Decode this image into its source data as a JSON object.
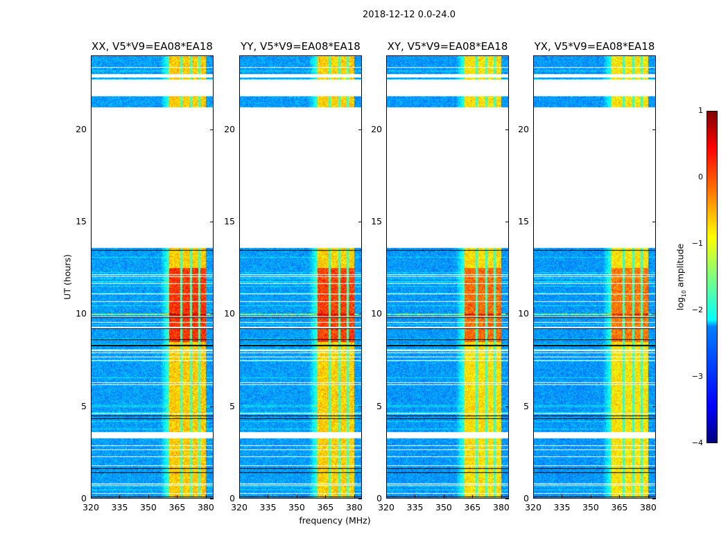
{
  "figure_title": "2018-12-12 0.0-24.0",
  "chart_data": {
    "type": "heatmap",
    "title": "2018-12-12 0.0-24.0",
    "xlabel": "frequency (MHz)",
    "ylabel": "UT (hours)",
    "xlim": [
      320,
      384
    ],
    "ylim": [
      0,
      24
    ],
    "xticks": [
      "320",
      "335",
      "350",
      "365",
      "380"
    ],
    "xtick_values": [
      320,
      335,
      350,
      365,
      380
    ],
    "yticks": [
      "0",
      "5",
      "10",
      "15",
      "20"
    ],
    "ytick_values": [
      0,
      5,
      10,
      15,
      20
    ],
    "panels": [
      {
        "title": "XX, V5*V9=EA08*EA18",
        "level": 1.0
      },
      {
        "title": "YY, V5*V9=EA08*EA18",
        "level": 0.95
      },
      {
        "title": "XY, V5*V9=EA08*EA18",
        "level": 0.8
      },
      {
        "title": "YX, V5*V9=EA08*EA18",
        "level": 0.75
      }
    ],
    "data_segments_hours": [
      [
        0,
        3.3
      ],
      [
        3.6,
        13.6
      ],
      [
        21.2,
        21.8
      ],
      [
        22.7,
        22.8
      ],
      [
        23.0,
        24.0
      ]
    ],
    "rfi_band_mhz": [
      360.5,
      380
    ],
    "rfi_band_gaps_mhz": [
      367,
      372,
      376.5
    ],
    "colorbar": {
      "label_prefix": "log",
      "label_sub": "10",
      "label_suffix": " amplitude",
      "range": [
        -4,
        1
      ],
      "colormap": "jet",
      "ticks": [
        "1",
        "0",
        "−1",
        "−2",
        "−3",
        "−4"
      ],
      "tick_values": [
        1,
        0,
        -1,
        -2,
        -3,
        -4
      ]
    }
  }
}
